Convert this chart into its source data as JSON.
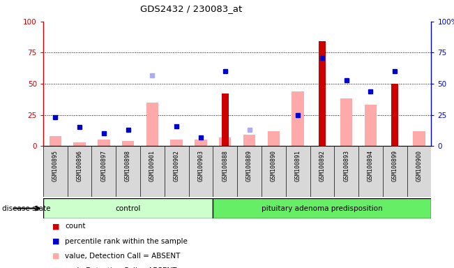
{
  "title": "GDS2432 / 230083_at",
  "samples": [
    "GSM100895",
    "GSM100896",
    "GSM100897",
    "GSM100898",
    "GSM100901",
    "GSM100902",
    "GSM100903",
    "GSM100888",
    "GSM100889",
    "GSM100890",
    "GSM100891",
    "GSM100892",
    "GSM100893",
    "GSM100894",
    "GSM100899",
    "GSM100900"
  ],
  "groups": [
    {
      "label": "control",
      "start": 0,
      "end": 7,
      "color": "#ccffcc"
    },
    {
      "label": "pituitary adenoma predisposition",
      "start": 7,
      "end": 16,
      "color": "#66ee66"
    }
  ],
  "count": [
    0,
    0,
    0,
    0,
    0,
    0,
    0,
    42,
    0,
    0,
    0,
    84,
    0,
    0,
    50,
    0
  ],
  "percentile_rank": [
    23,
    15,
    10,
    13,
    null,
    16,
    7,
    60,
    null,
    null,
    25,
    71,
    53,
    44,
    60,
    null
  ],
  "value_absent": [
    8,
    3,
    5,
    4,
    35,
    5,
    5,
    7,
    9,
    12,
    44,
    null,
    38,
    33,
    null,
    12
  ],
  "rank_absent": [
    null,
    null,
    null,
    null,
    57,
    null,
    null,
    null,
    13,
    null,
    null,
    null,
    null,
    null,
    null,
    null
  ],
  "left_axis_color": "#cc0000",
  "right_axis_color": "#0000cc",
  "count_color": "#cc0000",
  "percentile_color": "#0000cc",
  "value_absent_color": "#ffaaaa",
  "rank_absent_color": "#aaaaff",
  "ylim_left": [
    0,
    100
  ],
  "ylim_right": [
    0,
    100
  ],
  "yticks": [
    0,
    25,
    50,
    75,
    100
  ],
  "grid_lines": [
    25,
    50,
    75
  ],
  "bg_color": "#d8d8d8",
  "plot_bg": "#ffffff",
  "legend_items": [
    {
      "label": "count",
      "color": "#cc0000"
    },
    {
      "label": "percentile rank within the sample",
      "color": "#0000cc"
    },
    {
      "label": "value, Detection Call = ABSENT",
      "color": "#ffaaaa"
    },
    {
      "label": "rank, Detection Call = ABSENT",
      "color": "#aaaaff"
    }
  ]
}
